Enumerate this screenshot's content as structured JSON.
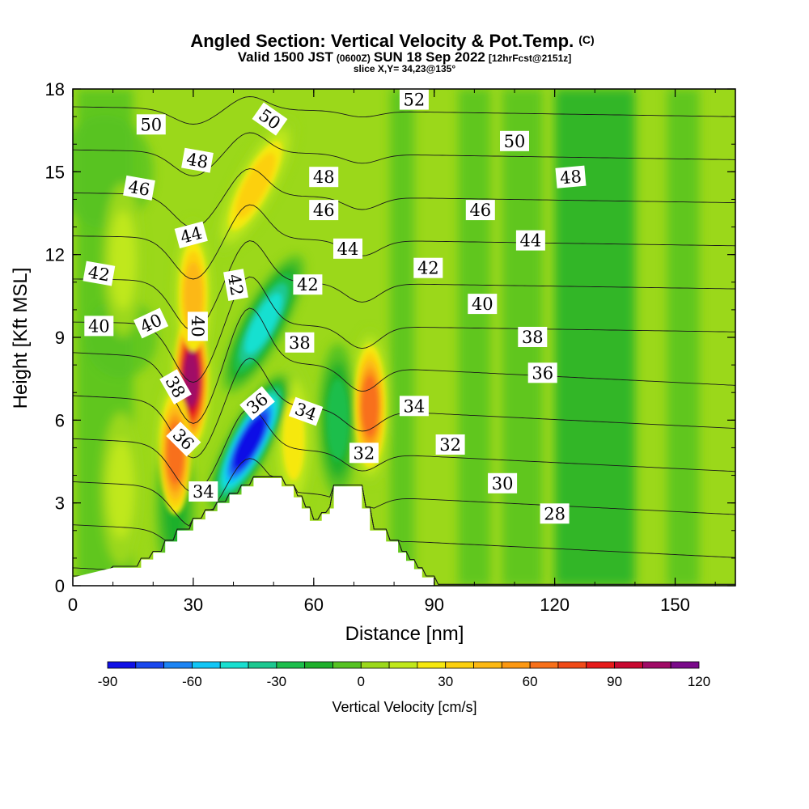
{
  "title": {
    "main": "Angled Section: Vertical Velocity & Pot.Temp.",
    "main_suffix": "(C)",
    "valid_prefix": "Valid 1500 JST",
    "valid_utc": "(0600Z)",
    "valid_date": "SUN 18 Sep 2022",
    "valid_fcst": "[12hrFcst@2151z]",
    "slice": "slice X,Y= 34,23@135°"
  },
  "chart_data": {
    "type": "heatmap",
    "xlabel": "Distance [nm]",
    "ylabel": "Height [Kft MSL]",
    "xlim": [
      0,
      165
    ],
    "ylim": [
      0,
      18
    ],
    "x_ticks": [
      {
        "value": 0,
        "label": "0"
      },
      {
        "value": 30,
        "label": "30"
      },
      {
        "value": 60,
        "label": "60"
      },
      {
        "value": 90,
        "label": "90"
      },
      {
        "value": 120,
        "label": "120"
      },
      {
        "value": 150,
        "label": "150"
      }
    ],
    "y_ticks": [
      {
        "value": 0,
        "label": "0"
      },
      {
        "value": 3,
        "label": "3"
      },
      {
        "value": 6,
        "label": "6"
      },
      {
        "value": 9,
        "label": "9"
      },
      {
        "value": 12,
        "label": "12"
      },
      {
        "value": 15,
        "label": "15"
      },
      {
        "value": 18,
        "label": "18"
      }
    ],
    "terrain_steps": [
      [
        0,
        0.3
      ],
      [
        10,
        0.65
      ],
      [
        17,
        0.65
      ],
      [
        17,
        0.95
      ],
      [
        20,
        0.95
      ],
      [
        20,
        1.2
      ],
      [
        23,
        1.2
      ],
      [
        23,
        1.6
      ],
      [
        26,
        1.6
      ],
      [
        26,
        2.0
      ],
      [
        30,
        2.0
      ],
      [
        30,
        2.4
      ],
      [
        33,
        2.4
      ],
      [
        33,
        2.7
      ],
      [
        36,
        2.7
      ],
      [
        36,
        3.0
      ],
      [
        39,
        3.0
      ],
      [
        39,
        3.3
      ],
      [
        42,
        3.3
      ],
      [
        42,
        3.6
      ],
      [
        45,
        3.6
      ],
      [
        45,
        3.9
      ],
      [
        52,
        3.9
      ],
      [
        52,
        3.6
      ],
      [
        55,
        3.6
      ],
      [
        55,
        3.2
      ],
      [
        57,
        3.2
      ],
      [
        57,
        2.8
      ],
      [
        59,
        2.8
      ],
      [
        59,
        2.35
      ],
      [
        62,
        2.35
      ],
      [
        62,
        2.6
      ],
      [
        64,
        2.6
      ],
      [
        64,
        2.8
      ],
      [
        65,
        2.8
      ],
      [
        65,
        3.6
      ],
      [
        72,
        3.6
      ],
      [
        72,
        2.8
      ],
      [
        74,
        2.8
      ],
      [
        74,
        2.0
      ],
      [
        78,
        2.0
      ],
      [
        78,
        1.6
      ],
      [
        81,
        1.6
      ],
      [
        81,
        1.2
      ],
      [
        83,
        1.2
      ],
      [
        83,
        0.9
      ],
      [
        85,
        0.9
      ],
      [
        85,
        0.6
      ],
      [
        87,
        0.6
      ],
      [
        87,
        0.3
      ],
      [
        90,
        0.3
      ],
      [
        90,
        0
      ],
      [
        0,
        0
      ]
    ],
    "theta_levels": [
      22,
      24,
      26,
      28,
      30,
      32,
      34,
      36,
      38,
      40,
      42,
      44,
      46,
      48,
      50,
      52,
      54
    ],
    "contour_labels": [
      {
        "text": "50",
        "x": 19.5,
        "y": 16.7,
        "angle": 0
      },
      {
        "text": "48",
        "x": 31.0,
        "y": 15.4,
        "angle": 10
      },
      {
        "text": "46",
        "x": 16.5,
        "y": 14.4,
        "angle": 10
      },
      {
        "text": "44",
        "x": 29.5,
        "y": 12.7,
        "angle": -15
      },
      {
        "text": "42",
        "x": 6.5,
        "y": 11.3,
        "angle": 10
      },
      {
        "text": "40",
        "x": 6.5,
        "y": 9.4,
        "angle": 0
      },
      {
        "text": "40",
        "x": 19.5,
        "y": 9.5,
        "angle": -25
      },
      {
        "text": "40",
        "x": 31.0,
        "y": 9.4,
        "angle": 90
      },
      {
        "text": "38",
        "x": 25.5,
        "y": 7.2,
        "angle": 60
      },
      {
        "text": "36",
        "x": 27.5,
        "y": 5.3,
        "angle": 45
      },
      {
        "text": "34",
        "x": 32.5,
        "y": 3.4,
        "angle": 0
      },
      {
        "text": "50",
        "x": 49.0,
        "y": 16.9,
        "angle": 35
      },
      {
        "text": "48",
        "x": 62.5,
        "y": 14.8,
        "angle": 0
      },
      {
        "text": "46",
        "x": 62.5,
        "y": 13.6,
        "angle": 0
      },
      {
        "text": "44",
        "x": 68.5,
        "y": 12.2,
        "angle": 0
      },
      {
        "text": "42",
        "x": 40.5,
        "y": 10.9,
        "angle": 80
      },
      {
        "text": "42",
        "x": 58.5,
        "y": 10.9,
        "angle": 0
      },
      {
        "text": "38",
        "x": 56.5,
        "y": 8.8,
        "angle": 0
      },
      {
        "text": "36",
        "x": 46.0,
        "y": 6.6,
        "angle": -40
      },
      {
        "text": "34",
        "x": 58.0,
        "y": 6.3,
        "angle": 20
      },
      {
        "text": "32",
        "x": 72.5,
        "y": 4.8,
        "angle": 0
      },
      {
        "text": "52",
        "x": 85.0,
        "y": 17.6,
        "angle": 0
      },
      {
        "text": "50",
        "x": 110.0,
        "y": 16.1,
        "angle": 0
      },
      {
        "text": "48",
        "x": 124.0,
        "y": 14.8,
        "angle": -5
      },
      {
        "text": "46",
        "x": 101.5,
        "y": 13.6,
        "angle": 0
      },
      {
        "text": "44",
        "x": 114.0,
        "y": 12.5,
        "angle": 0
      },
      {
        "text": "42",
        "x": 88.5,
        "y": 11.5,
        "angle": 0
      },
      {
        "text": "40",
        "x": 102.0,
        "y": 10.2,
        "angle": 0
      },
      {
        "text": "38",
        "x": 114.5,
        "y": 9.0,
        "angle": 0
      },
      {
        "text": "36",
        "x": 117.0,
        "y": 7.7,
        "angle": 0
      },
      {
        "text": "34",
        "x": 85.0,
        "y": 6.5,
        "angle": 0
      },
      {
        "text": "32",
        "x": 94.0,
        "y": 5.1,
        "angle": 0
      },
      {
        "text": "30",
        "x": 107.0,
        "y": 3.7,
        "angle": 0
      },
      {
        "text": "28",
        "x": 120.0,
        "y": 2.6,
        "angle": 0
      }
    ],
    "velocity_features": [
      {
        "kind": "updraft",
        "x": 29.5,
        "y": 7.5,
        "max_cm_s": 110,
        "orientation": "vertical"
      },
      {
        "kind": "updraft",
        "x": 25.5,
        "y": 4.8,
        "max_cm_s": 70,
        "orientation": "vertical"
      },
      {
        "kind": "updraft",
        "x": 45.5,
        "y": 14.5,
        "max_cm_s": 40,
        "orientation": "tilted"
      },
      {
        "kind": "updraft",
        "x": 55.0,
        "y": 5.3,
        "max_cm_s": 30,
        "orientation": "vertical"
      },
      {
        "kind": "updraft",
        "x": 74.0,
        "y": 6.5,
        "max_cm_s": 70,
        "orientation": "vertical"
      },
      {
        "kind": "updraft",
        "x": 30.0,
        "y": 10.5,
        "max_cm_s": 50,
        "orientation": "vertical"
      },
      {
        "kind": "updraft",
        "x": 12.5,
        "y": 11.8,
        "max_cm_s": 20,
        "orientation": "vertical"
      },
      {
        "kind": "updraft",
        "x": 12.0,
        "y": 3.5,
        "max_cm_s": 20,
        "orientation": "vertical"
      },
      {
        "kind": "downdraft",
        "x": 44.0,
        "y": 5.2,
        "min_cm_s": -90,
        "orientation": "tilted"
      },
      {
        "kind": "downdraft",
        "x": 47.5,
        "y": 9.5,
        "min_cm_s": -50,
        "orientation": "tilted"
      },
      {
        "kind": "downdraft",
        "x": 66.0,
        "y": 6.0,
        "min_cm_s": -30,
        "orientation": "vertical"
      },
      {
        "kind": "downdraft",
        "x": 25.5,
        "y": 2.8,
        "min_cm_s": -20,
        "orientation": "vertical"
      }
    ]
  },
  "colorbar": {
    "title": "Vertical Velocity [cm/s]",
    "min": -90,
    "max": 120,
    "step": 10,
    "tick_labels": [
      {
        "value": -90,
        "label": "-90"
      },
      {
        "value": -60,
        "label": "-60"
      },
      {
        "value": -30,
        "label": "-30"
      },
      {
        "value": 0,
        "label": "0"
      },
      {
        "value": 30,
        "label": "30"
      },
      {
        "value": 60,
        "label": "60"
      },
      {
        "value": 90,
        "label": "90"
      },
      {
        "value": 120,
        "label": "120"
      }
    ],
    "colors": [
      "#1010e6",
      "#1a48ee",
      "#1c84f4",
      "#11c6f6",
      "#19e0d0",
      "#1cc890",
      "#1dbe4c",
      "#1fb02c",
      "#56c322",
      "#9bd81a",
      "#c0e81a",
      "#f6e80e",
      "#fcd00e",
      "#fcb812",
      "#fc9812",
      "#f8701a",
      "#f04a18",
      "#e61a1a",
      "#c80830",
      "#a00a66",
      "#7a0a8a"
    ]
  }
}
